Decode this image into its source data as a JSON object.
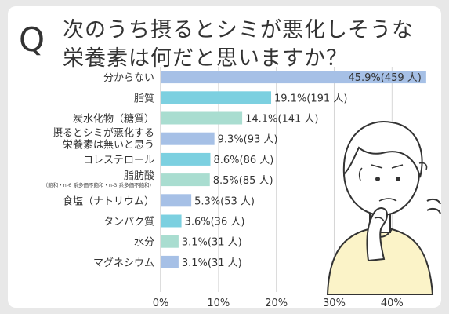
{
  "question": {
    "mark": "Q",
    "line1": "次のうち摂るとシミが悪化しそうな",
    "line2": "栄養素は何だと思いますか？"
  },
  "colors": {
    "blue": "#a6c0e6",
    "cyan": "#7cd0e0",
    "green": "#a9ddd0",
    "frame": "#e8e8e8"
  },
  "chart_data": {
    "type": "bar",
    "orientation": "horizontal",
    "title": "",
    "xlabel": "",
    "ylabel": "",
    "xlim": [
      0,
      47
    ],
    "xticks": [
      "0%",
      "10%",
      "20%",
      "30%",
      "40%"
    ],
    "xtick_values": [
      0,
      10,
      20,
      30,
      40
    ],
    "grid": true,
    "categories": [
      "分からない",
      "脂質",
      "炭水化物（糖質）",
      "摂るとシミが悪化する栄養素は無いと思う",
      "コレステロール",
      "脂肪酸",
      "食塩（ナトリウム）",
      "タンパク質",
      "水分",
      "マグネシウム"
    ],
    "category_lines": [
      [
        "分からない"
      ],
      [
        "脂質"
      ],
      [
        "炭水化物（糖質）"
      ],
      [
        "摂るとシミが悪化する",
        "栄養素は無いと思う"
      ],
      [
        "コレステロール"
      ],
      [
        "脂肪酸"
      ],
      [
        "食塩（ナトリウム）"
      ],
      [
        "タンパク質"
      ],
      [
        "水分"
      ],
      [
        "マグネシウム"
      ]
    ],
    "subnotes": [
      "",
      "",
      "",
      "",
      "",
      "（飽和・n-6 系多価不飽和・n-3 系多価不飽和）",
      "",
      "",
      "",
      ""
    ],
    "values": [
      45.9,
      19.1,
      14.1,
      9.3,
      8.6,
      8.5,
      5.3,
      3.6,
      3.1,
      3.1
    ],
    "data_labels": [
      "45.9%(459 人)",
      "19.1%(191 人)",
      "14.1%(141 人)",
      "9.3%(93 人)",
      "8.6%(86 人)",
      "8.5%(85 人)",
      "5.3%(53 人)",
      "3.6%(36 人)",
      "3.1%(31 人)",
      "3.1%(31 人)"
    ],
    "bar_colors": [
      "#a6c0e6",
      "#7cd0e0",
      "#a9ddd0",
      "#a6c0e6",
      "#7cd0e0",
      "#a9ddd0",
      "#a6c0e6",
      "#7cd0e0",
      "#a9ddd0",
      "#a6c0e6"
    ]
  }
}
